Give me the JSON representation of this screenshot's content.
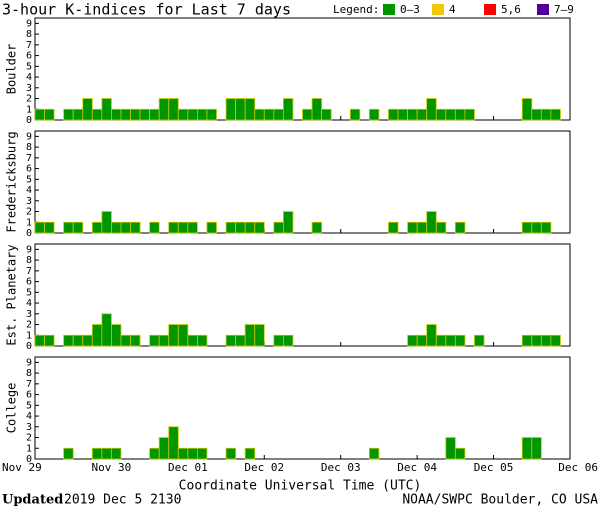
{
  "title": "3-hour K-indices for Last 7 days",
  "legend": {
    "label": "Legend:",
    "items": [
      {
        "name": "0–3",
        "color": "#009600"
      },
      {
        "name": "4",
        "color": "#f0c800"
      },
      {
        "name": "5,6",
        "color": "#ff0000"
      },
      {
        "name": "7–9",
        "color": "#500096"
      }
    ]
  },
  "chart_data": [
    {
      "type": "bar",
      "ylabel": "Boulder",
      "color": "#009600",
      "ylim": [
        0,
        9.5
      ],
      "yticks": [
        0,
        1,
        2,
        3,
        4,
        5,
        6,
        7,
        8,
        9
      ],
      "values": [
        1,
        1,
        0,
        1,
        1,
        2,
        1,
        2,
        1,
        1,
        1,
        1,
        1,
        2,
        2,
        1,
        1,
        1,
        1,
        0,
        2,
        2,
        2,
        1,
        1,
        1,
        2,
        0,
        1,
        2,
        1,
        0,
        0,
        1,
        0,
        1,
        0,
        1,
        1,
        1,
        1,
        2,
        1,
        1,
        1,
        1,
        0,
        0,
        0,
        0,
        0,
        2,
        1,
        1,
        1,
        0
      ]
    },
    {
      "type": "bar",
      "ylabel": "Fredericksburg",
      "color": "#009600",
      "ylim": [
        0,
        9.5
      ],
      "yticks": [
        0,
        1,
        2,
        3,
        4,
        5,
        6,
        7,
        8,
        9
      ],
      "values": [
        1,
        1,
        0,
        1,
        1,
        0,
        1,
        2,
        1,
        1,
        1,
        0,
        1,
        0,
        1,
        1,
        1,
        0,
        1,
        0,
        1,
        1,
        1,
        1,
        0,
        1,
        2,
        0,
        0,
        1,
        0,
        0,
        0,
        0,
        0,
        0,
        0,
        1,
        0,
        1,
        1,
        2,
        1,
        0,
        1,
        0,
        0,
        0,
        0,
        0,
        0,
        1,
        1,
        1,
        0,
        0
      ]
    },
    {
      "type": "bar",
      "ylabel": "Est. Planetary",
      "color": "#009600",
      "ylim": [
        0,
        9.5
      ],
      "yticks": [
        0,
        1,
        2,
        3,
        4,
        5,
        6,
        7,
        8,
        9
      ],
      "values": [
        1,
        1,
        0,
        1,
        1,
        1,
        2,
        3,
        2,
        1,
        1,
        0,
        1,
        1,
        2,
        2,
        1,
        1,
        0,
        0,
        1,
        1,
        2,
        2,
        0,
        1,
        1,
        0,
        0,
        0,
        0,
        0,
        0,
        0,
        0,
        0,
        0,
        0,
        0,
        1,
        1,
        2,
        1,
        1,
        1,
        0,
        1,
        0,
        0,
        0,
        0,
        1,
        1,
        1,
        1,
        0
      ]
    },
    {
      "type": "bar",
      "ylabel": "College",
      "color": "#009600",
      "ylim": [
        0,
        9.5
      ],
      "yticks": [
        0,
        1,
        2,
        3,
        4,
        5,
        6,
        7,
        8,
        9
      ],
      "values": [
        0,
        0,
        0,
        1,
        0,
        0,
        1,
        1,
        1,
        0,
        0,
        0,
        1,
        2,
        3,
        1,
        1,
        1,
        0,
        0,
        1,
        0,
        1,
        0,
        0,
        0,
        0,
        0,
        0,
        0,
        0,
        0,
        0,
        0,
        0,
        1,
        0,
        0,
        0,
        0,
        0,
        0,
        0,
        2,
        1,
        0,
        0,
        0,
        0,
        0,
        0,
        2,
        2,
        0,
        0,
        0
      ],
      "xlabel": "Coordinate Universal Time (UTC)",
      "xlim": [
        0,
        56
      ],
      "xticks": [
        {
          "value": 0,
          "label": "Nov 29"
        },
        {
          "value": 8,
          "label": "Nov 30"
        },
        {
          "value": 16,
          "label": "Dec 01"
        },
        {
          "value": 24,
          "label": "Dec 02"
        },
        {
          "value": 32,
          "label": "Dec 03"
        },
        {
          "value": 40,
          "label": "Dec 04"
        },
        {
          "value": 48,
          "label": "Dec 05"
        },
        {
          "value": 56,
          "label": "Dec 06"
        }
      ]
    }
  ],
  "footer": {
    "updated_label": "Updated",
    "updated": "2019 Dec  5 2130",
    "source": "NOAA/SWPC Boulder, CO USA"
  }
}
